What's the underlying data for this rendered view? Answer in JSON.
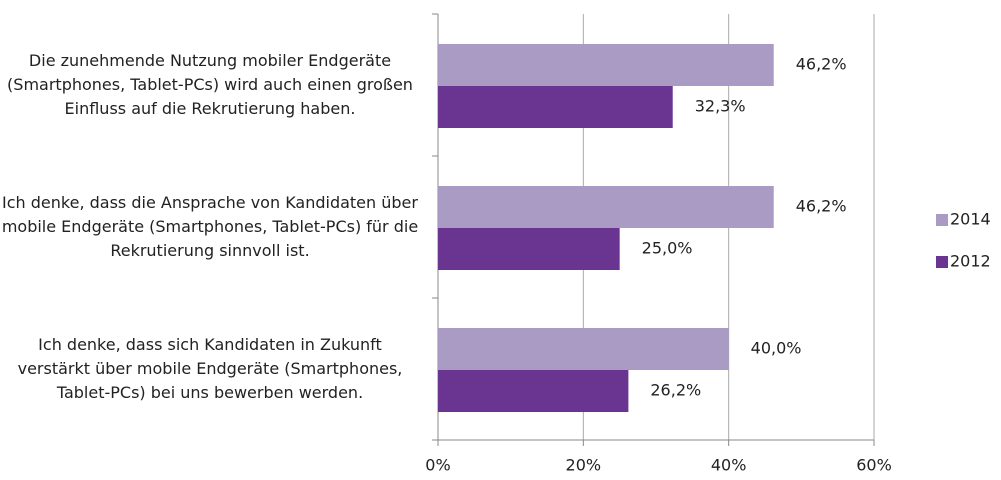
{
  "chart_data": {
    "type": "hbar",
    "categories": [
      "Die zunehmende Nutzung mobiler Endgeräte (Smartphones, Tablet-PCs) wird auch einen großen Einfluss auf die Rekrutierung haben.",
      "Ich denke, dass die Ansprache von Kandidaten über mobile Endgeräte (Smartphones, Tablet-PCs) für die Rekrutierung sinnvoll ist.",
      "Ich denke, dass sich Kandidaten in Zukunft verstärkt über mobile Endgeräte (Smartphones, Tablet-PCs) bei uns bewerben werden."
    ],
    "series": [
      {
        "name": "2014",
        "color": "#a99bc4",
        "values": [
          46.2,
          46.2,
          40.0
        ],
        "value_labels": [
          "46,2%",
          "46,2%",
          "40,0%"
        ]
      },
      {
        "name": "2012",
        "color": "#6a3591",
        "values": [
          32.3,
          25.0,
          26.2
        ],
        "value_labels": [
          "32,3%",
          "25,0%",
          "26,2%"
        ]
      }
    ],
    "xlim": [
      0,
      60
    ],
    "xticks": [
      {
        "value": 0,
        "label": "0%"
      },
      {
        "value": 20,
        "label": "20%"
      },
      {
        "value": 40,
        "label": "40%"
      },
      {
        "value": 60,
        "label": "60%"
      }
    ],
    "grid": true,
    "legend": "right"
  }
}
